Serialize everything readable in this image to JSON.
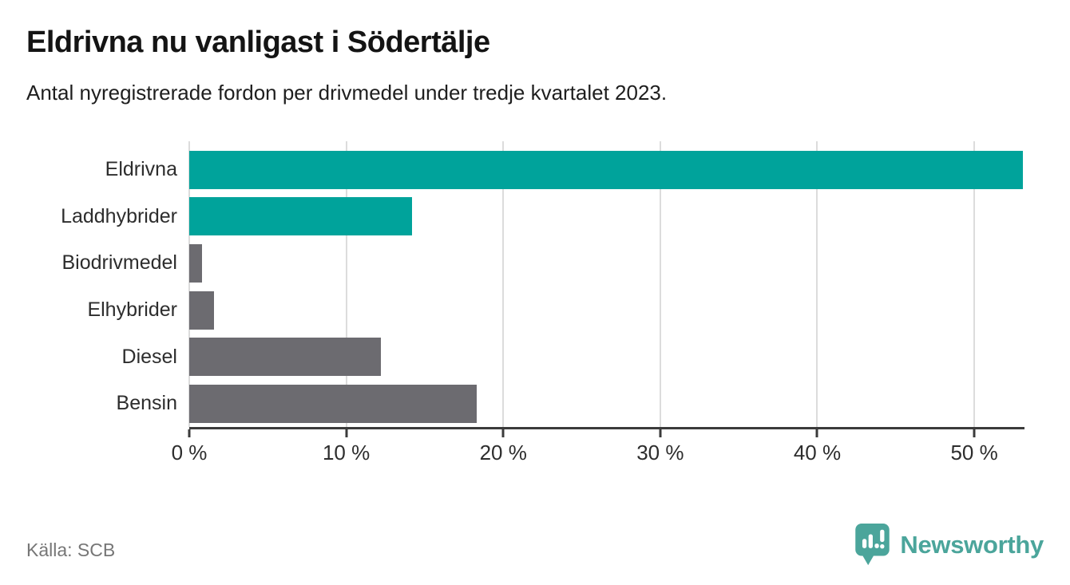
{
  "source": "Källa: SCB",
  "brand": {
    "name": "Newsworthy",
    "color": "#4ba59b"
  },
  "colors": {
    "highlight": "#00a39b",
    "neutral": "#6c6b70",
    "axis": "#3b3b3b",
    "gridline": "#dcdcdc",
    "title_text": "#141414",
    "label_text": "#2d2d2d",
    "source_text": "#767676"
  },
  "chart_data": {
    "type": "bar",
    "orientation": "horizontal",
    "title": "Eldrivna nu vanligast i Södertälje",
    "subtitle": "Antal nyregistrerade fordon per drivmedel under tredje kvartalet 2023.",
    "categories": [
      "Eldrivna",
      "Laddhybrider",
      "Biodrivmedel",
      "Elhybrider",
      "Diesel",
      "Bensin"
    ],
    "values": [
      53.1,
      14.2,
      0.8,
      1.6,
      12.2,
      18.3
    ],
    "unit": "%",
    "bar_colors": [
      "#00a39b",
      "#00a39b",
      "#6c6b70",
      "#6c6b70",
      "#6c6b70",
      "#6c6b70"
    ],
    "xlabel": "",
    "ylabel": "",
    "xlim": [
      0,
      53.2
    ],
    "xticks": [
      0,
      10,
      20,
      30,
      40,
      50
    ],
    "xtick_labels": [
      "0 %",
      "10 %",
      "20 %",
      "30 %",
      "40 %",
      "50 %"
    ],
    "grid": "vertical-gridlines-at-xticks",
    "legend": "none"
  }
}
